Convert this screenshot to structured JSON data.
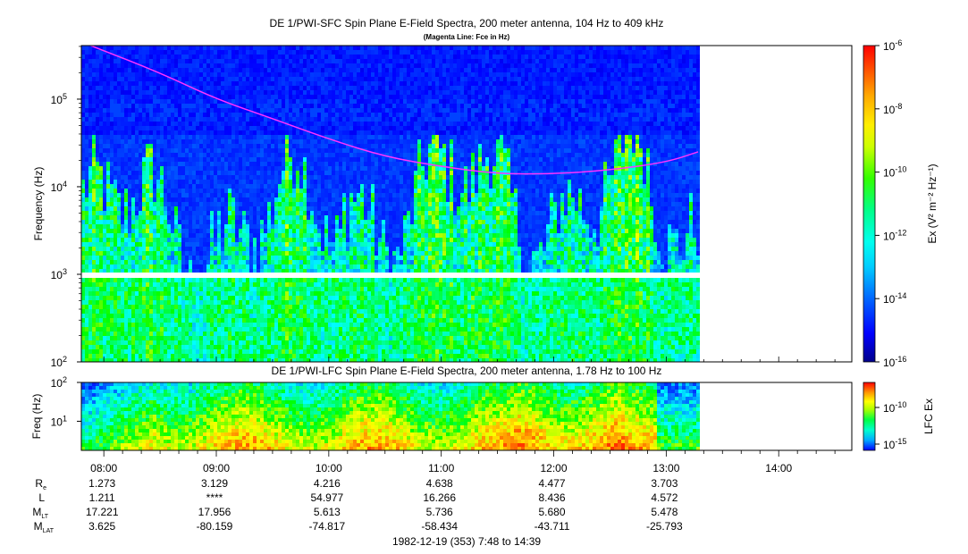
{
  "chart_data": [
    {
      "type": "heatmap",
      "title": "DE 1/PWI-SFC  Spin Plane E-Field Spectra, 200 meter antenna, 104 Hz to 409 kHz",
      "subtitle": "(Magenta Line: Fce in Hz)",
      "ylabel": "Frequency (Hz)",
      "yscale": "log",
      "ylim": [
        100,
        409000
      ],
      "y_ticks": [
        "10^2",
        "10^3",
        "10^4",
        "10^5"
      ],
      "x_time_range": [
        "07:48",
        "14:39"
      ],
      "data_end_time": "13:17",
      "fce_line": {
        "color": "#ff33ff",
        "points": [
          [
            "07:53",
            409000
          ],
          [
            "08:30",
            200000
          ],
          [
            "09:00",
            100000
          ],
          [
            "09:30",
            60000
          ],
          [
            "10:00",
            35000
          ],
          [
            "10:30",
            22000
          ],
          [
            "11:00",
            17000
          ],
          [
            "11:30",
            14000
          ],
          [
            "12:00",
            14000
          ],
          [
            "12:30",
            15500
          ],
          [
            "13:00",
            19000
          ],
          [
            "13:17",
            25000
          ]
        ]
      },
      "colorbar": {
        "label": "Ex (V² m⁻² Hz⁻¹)",
        "scale": "log",
        "range": [
          1e-16,
          1e-06
        ],
        "tick_labels": [
          "10^-6",
          "10^-8",
          "10^-10",
          "10^-12",
          "10^-14",
          "10^-16"
        ]
      }
    },
    {
      "type": "heatmap",
      "title": "DE 1/PWI-LFC  Spin Plane E-Field Spectra, 200 meter antenna, 1.78 Hz to 100 Hz",
      "ylabel": "Freq (Hz)",
      "yscale": "log",
      "ylim": [
        1.78,
        100
      ],
      "y_ticks": [
        "10^1",
        "10^2"
      ],
      "data_end_time": "13:17",
      "colorbar": {
        "label": "LFC Ex",
        "scale": "log",
        "range": [
          1e-17,
          1e-08
        ],
        "tick_labels": [
          "10^-10",
          "10^-15"
        ]
      }
    }
  ],
  "x_axis": {
    "tick_labels": [
      "08:00",
      "09:00",
      "10:00",
      "11:00",
      "12:00",
      "13:00",
      "14:00"
    ],
    "footer": "1982-12-19 (353) 7:48 to 14:39"
  },
  "ephemeris": [
    {
      "label": "R",
      "sub": "e",
      "values": [
        "1.273",
        "3.129",
        "4.216",
        "4.638",
        "4.477",
        "3.703"
      ]
    },
    {
      "label": "L",
      "sub": "",
      "values": [
        "1.211",
        "****",
        "54.977",
        "16.266",
        "8.436",
        "4.572"
      ]
    },
    {
      "label": "M",
      "sub": "LT",
      "values": [
        "17.221",
        "17.956",
        "5.613",
        "5.736",
        "5.680",
        "5.478"
      ]
    },
    {
      "label": "M",
      "sub": "LAT",
      "values": [
        "3.625",
        "-80.159",
        "-74.817",
        "-58.434",
        "-43.711",
        "-25.793"
      ]
    }
  ],
  "colors": {
    "background": "#ffffff",
    "fce": "#ff33ff",
    "colormap": [
      "#00008b",
      "#0000ff",
      "#0044ff",
      "#00aaff",
      "#00ffff",
      "#00ff88",
      "#00ff00",
      "#aaff00",
      "#ffff00",
      "#ffaa00",
      "#ff5500",
      "#ff0000"
    ]
  }
}
